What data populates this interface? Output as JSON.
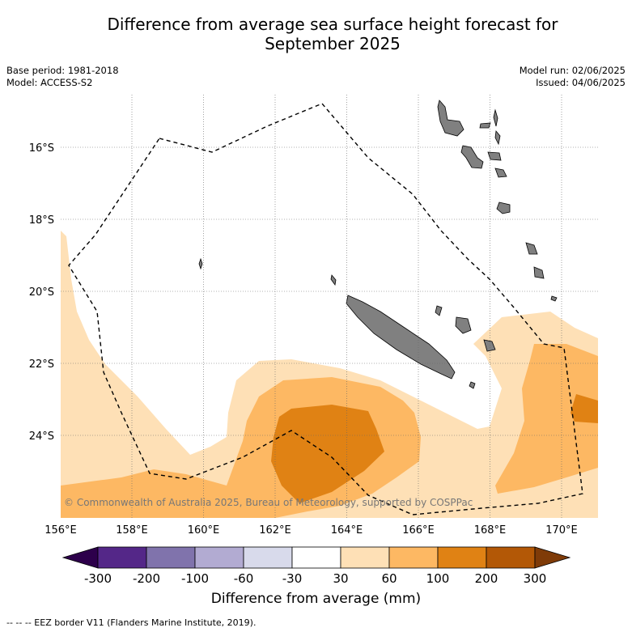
{
  "title_line1": "Difference from average sea surface height forecast for",
  "title_line2": "September 2025",
  "meta_left": {
    "base_period": "Base period: 1981-2018",
    "model": "Model: ACCESS-S2"
  },
  "meta_right": {
    "model_run": "Model run: 02/06/2025",
    "issued": "Issued: 04/06/2025"
  },
  "copyright": "© Commonwealth of Australia 2025, Bureau of Meteorology, supported by COSPPac",
  "colorbar": {
    "label": "Difference from average (mm)",
    "ticks": [
      "-300",
      "-200",
      "-100",
      "-60",
      "-30",
      "30",
      "60",
      "100",
      "200",
      "300"
    ],
    "colors": [
      "#2d004b",
      "#542788",
      "#8073ac",
      "#b2abd2",
      "#d8daeb",
      "#ffffff",
      "#fee0b6",
      "#fdb863",
      "#e08214",
      "#b35806",
      "#7f3b08"
    ]
  },
  "footnote": "--  --  -- EEZ border V11 (Flanders Marine Institute, 2019).",
  "map": {
    "lon_ticks": [
      "156°E",
      "158°E",
      "160°E",
      "162°E",
      "164°E",
      "166°E",
      "168°E",
      "170°E"
    ],
    "lat_ticks": [
      "16°S",
      "18°S",
      "20°S",
      "22°S",
      "24°S"
    ],
    "land_color": "#808080",
    "legend_colors": {
      "c30_60": "#fee0b6",
      "c60_100": "#fdb863",
      "c100_200": "#e08214"
    }
  }
}
